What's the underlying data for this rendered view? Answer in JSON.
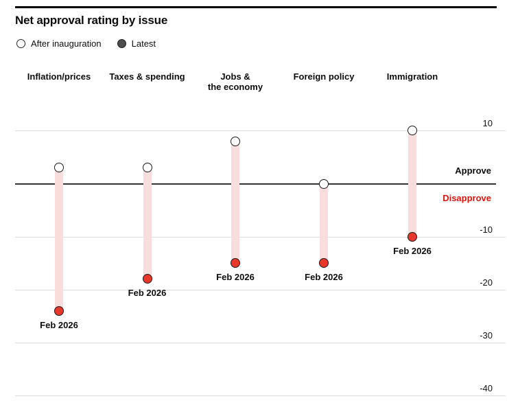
{
  "title": "Net approval rating by issue",
  "legend": {
    "after_label": "After inauguration",
    "latest_label": "Latest"
  },
  "axis": {
    "approve_label": "Approve",
    "disapprove_label": "Disapprove",
    "tick_labels": [
      "10",
      "-10",
      "-20",
      "-30",
      "-40"
    ]
  },
  "colors": {
    "red_dot": "#e8382c",
    "pink_bar": "#f8dddd",
    "disapprove_text": "#e3120b",
    "approve_text": "#0d0d0d",
    "legend_latest_dot": "#4d4d4d",
    "gridline": "#dcdcdc",
    "zero_line": "#333333"
  },
  "chart_data": {
    "type": "scatter",
    "subtype": "dumbbell-range",
    "title": "Net approval rating by issue",
    "categories": [
      "Inflation/prices",
      "Taxes & spending",
      "Jobs &\nthe economy",
      "Foreign policy",
      "Immigration"
    ],
    "series": [
      {
        "name": "After inauguration",
        "marker": "open-circle",
        "values": [
          3,
          3,
          8,
          0,
          10
        ]
      },
      {
        "name": "Latest",
        "marker": "red-filled-circle",
        "values": [
          -24,
          -18,
          -15,
          -15,
          -10
        ]
      }
    ],
    "latest_point_label": "Feb 2026",
    "xlabel": "",
    "ylabel": "",
    "ylim": [
      -41,
      14
    ],
    "yticks": [
      10,
      0,
      -10,
      -20,
      -30,
      -40
    ],
    "zero_line": true,
    "annotations": {
      "above_zero": "Approve",
      "below_zero": "Disapprove"
    },
    "legend_position": "top-left",
    "grid": "horizontal"
  }
}
